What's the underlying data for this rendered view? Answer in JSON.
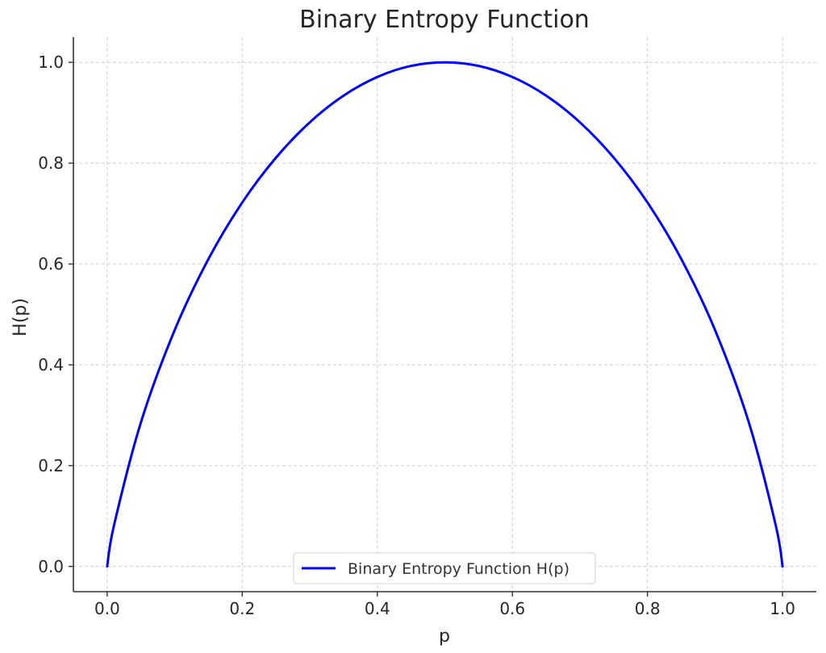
{
  "chart_data": {
    "type": "line",
    "title": "Binary Entropy Function",
    "xlabel": "p",
    "ylabel": "H(p)",
    "xlim": [
      -0.05,
      1.05
    ],
    "ylim": [
      -0.05,
      1.05
    ],
    "xticks": [
      "0.0",
      "0.2",
      "0.4",
      "0.6",
      "0.8",
      "1.0"
    ],
    "yticks": [
      "0.0",
      "0.2",
      "0.4",
      "0.6",
      "0.8",
      "1.0"
    ],
    "grid": true,
    "legend": {
      "position": "lower center",
      "entries": [
        "Binary Entropy Function H(p)"
      ]
    },
    "series": [
      {
        "name": "Binary Entropy Function H(p)",
        "color": "#0000ff",
        "x": [
          0.0,
          0.01,
          0.05,
          0.1,
          0.15,
          0.2,
          0.25,
          0.3,
          0.35,
          0.4,
          0.45,
          0.5,
          0.55,
          0.6,
          0.65,
          0.7,
          0.75,
          0.8,
          0.85,
          0.9,
          0.95,
          0.99,
          1.0
        ],
        "y": [
          0.0,
          0.081,
          0.286,
          0.469,
          0.61,
          0.722,
          0.811,
          0.881,
          0.934,
          0.971,
          0.993,
          1.0,
          0.993,
          0.971,
          0.934,
          0.881,
          0.811,
          0.722,
          0.61,
          0.469,
          0.286,
          0.081,
          0.0
        ]
      }
    ]
  }
}
